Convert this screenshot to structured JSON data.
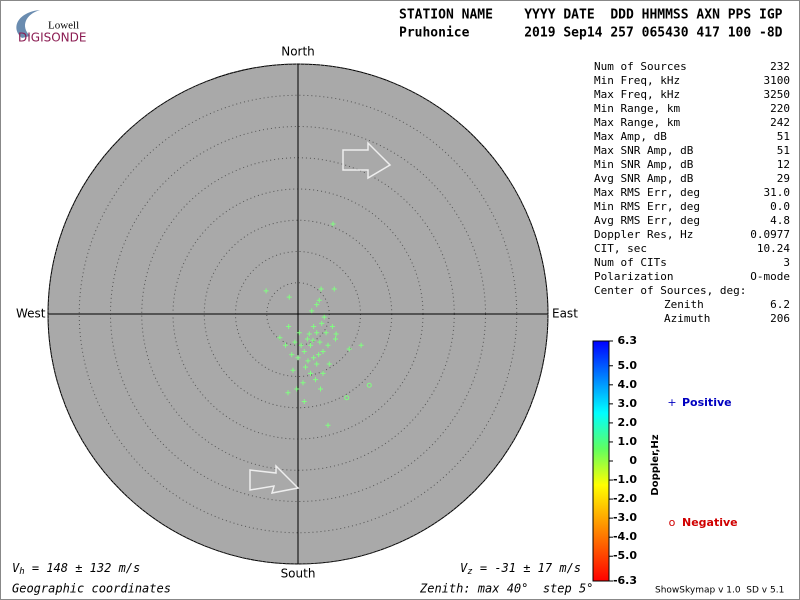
{
  "header": {
    "logo_top": "Lowell",
    "logo_bottom": "DIGISONDE",
    "columns": "STATION NAME    YYYY DATE  DDD HHMMSS AXN PPS IGP",
    "values": "Pruhonice       2019 Sep14 257 065430 417 100 -8D"
  },
  "stats": {
    "rows": [
      [
        "Num of Sources",
        "232"
      ],
      [
        "Min Freq, kHz",
        "3100"
      ],
      [
        "Max Freq, kHz",
        "3250"
      ],
      [
        "Min Range, km",
        "220"
      ],
      [
        "Max Range, km",
        "242"
      ],
      [
        "Max Amp, dB",
        "51"
      ],
      [
        "Max SNR Amp, dB",
        "51"
      ],
      [
        "Min SNR Amp, dB",
        "12"
      ],
      [
        "Avg SNR Amp, dB",
        "29"
      ],
      [
        "Max RMS Err, deg",
        "31.0"
      ],
      [
        "Min RMS Err, deg",
        "0.0"
      ],
      [
        "Avg RMS Err, deg",
        "4.8"
      ],
      [
        "Doppler Res, Hz",
        "0.0977"
      ],
      [
        "CIT, sec",
        "10.24"
      ],
      [
        "Num of CITs",
        "3"
      ],
      [
        "Polarization",
        "O-mode"
      ]
    ],
    "center_label": "Center of Sources, deg:",
    "center_rows": [
      [
        "Zenith",
        "6.2"
      ],
      [
        "Azimuth",
        "206"
      ]
    ]
  },
  "chart_data": {
    "type": "skymap",
    "directions": {
      "north": "North",
      "south": "South",
      "west": "West",
      "east": "East"
    },
    "rlim": [
      0,
      40
    ],
    "rticks": [
      5,
      10,
      15,
      20,
      25,
      30,
      35,
      40
    ],
    "series": [
      {
        "name": "Positive",
        "marker": "+",
        "color": "#80ff80",
        "legend_color": "#0000c0",
        "x": [
          2.5,
          3,
          1.5,
          2,
          3.5,
          4,
          1,
          2.5,
          3,
          0.5,
          1.8,
          4.5,
          3.8,
          2.2,
          3,
          4.2,
          1.2,
          2,
          0,
          -0.5,
          -1,
          -2,
          -0.8,
          0.8,
          2.8,
          5,
          4.8,
          5.5,
          3.3,
          1.6,
          2.4,
          0.2,
          -1.5,
          4,
          6,
          -0.2,
          1,
          3.6,
          5.6,
          -5.1,
          -1.4,
          3.7,
          5.8,
          3.4,
          8.2,
          4.8,
          -1.6,
          -2.9,
          10.1,
          6.1
        ],
        "y": [
          -2,
          -3,
          -4,
          -5,
          -4.5,
          -6,
          -6,
          -7,
          -8,
          -5,
          -3.2,
          -3,
          -1.5,
          0.5,
          1.5,
          -0.5,
          -8.5,
          -9.5,
          -7,
          -4.5,
          -6.5,
          -5,
          -9,
          -11,
          -10.5,
          -8,
          -5,
          -2,
          -6.5,
          -7.5,
          -4.2,
          -3,
          -2,
          -9.5,
          -4,
          -12,
          -14,
          -12,
          14.4,
          3.7,
          2.7,
          4,
          4,
          2.2,
          -5.6,
          -17.8,
          -12.6,
          -3.8,
          -5,
          -3.2
        ]
      },
      {
        "name": "Negative",
        "marker": "o",
        "color": "#80ff80",
        "legend_color": "#d00000",
        "x": [
          11.4,
          7.8
        ],
        "y": [
          -11.4,
          -13.4
        ]
      }
    ],
    "colorbar": {
      "label": "Doppler,Hz",
      "lim": [
        -6.3,
        6.3
      ],
      "ticks": [
        6.3,
        {
          "value": 5,
          "label": "5.0"
        },
        {
          "value": 4,
          "label": "4.0"
        },
        {
          "value": 3,
          "label": "3.0"
        },
        {
          "value": 2,
          "label": "2.0"
        },
        {
          "value": 1,
          "label": "1.0"
        },
        0,
        {
          "value": -1,
          "label": "-1.0"
        },
        {
          "value": -2,
          "label": "-2.0"
        },
        {
          "value": -3,
          "label": "-3.0"
        },
        {
          "value": -4,
          "label": "-4.0"
        },
        {
          "value": -5,
          "label": "-5.0"
        },
        -6.3
      ]
    },
    "footer": {
      "vh_sym": "V",
      "vh_sub": "h",
      "vh_text": " = 148 ± 132 m/s",
      "vz_sym": "V",
      "vz_sub": "z",
      "vz_text": " = -31 ± 17 m/s",
      "coords": "Geographic coordinates",
      "zenith": "Zenith: max 40°  step 5°",
      "version": "ShowSkymap v 1.0  SD v 5.1"
    }
  }
}
